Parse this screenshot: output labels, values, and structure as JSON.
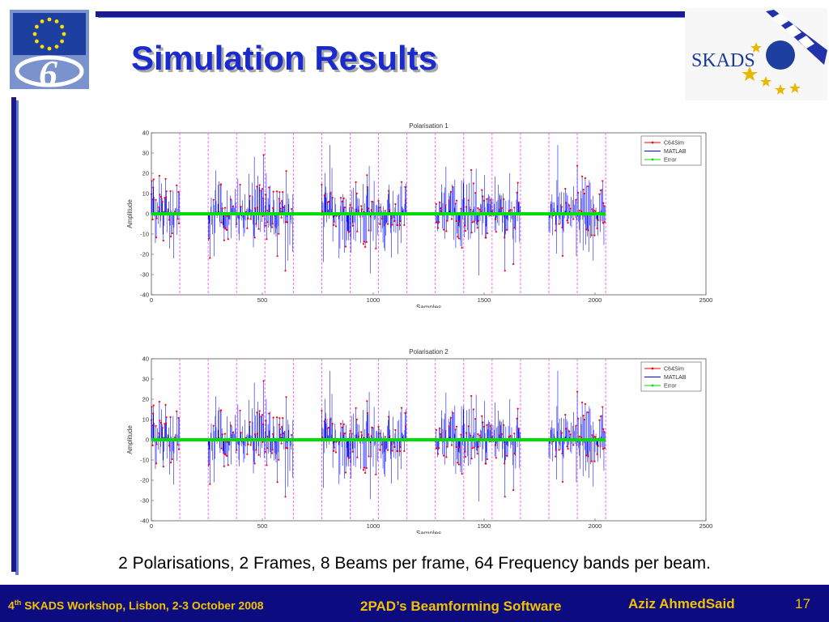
{
  "slide": {
    "title": "Simulation Results",
    "caption": "2 Polarisations, 2 Frames, 8 Beams per frame, 64 Frequency bands per beam."
  },
  "footer": {
    "event_num": "4",
    "event_sup": "th",
    "event_rest": " SKADS Workshop, Lisbon, 2-3 October 2008",
    "talk": "2PAD’s Beamforming Software",
    "author": "Aziz AhmedSaid",
    "page": "17"
  },
  "logos": {
    "eu": {
      "name": "eu-fp6-logo",
      "number": "6"
    },
    "skads": {
      "name": "skads-logo",
      "text": "SKADS"
    }
  },
  "colors": {
    "accent_blue": "#1a1a8c",
    "title_blue": "#1a2acc",
    "footer_text": "#f2c200",
    "c64sim": "#ff0000",
    "matlab": "#0000ff",
    "error": "#00dd00",
    "boundary": "#ff55ff"
  },
  "chart_data": [
    {
      "type": "line",
      "title": "Polarisation 1",
      "xlabel": "Samples",
      "ylabel": "Amplitude",
      "xlim": [
        0,
        2500
      ],
      "ylim": [
        -40,
        40
      ],
      "xticks": [
        0,
        500,
        1000,
        1500,
        2000,
        2500
      ],
      "yticks": [
        40,
        30,
        20,
        10,
        0,
        -10,
        -20,
        -30,
        -40
      ],
      "grid": false,
      "legend_position": "top-right",
      "series": [
        {
          "name": "C64Sim",
          "color": "#ff0000",
          "marker": "dot"
        },
        {
          "name": "MATLAB",
          "color": "#0000ff",
          "marker": "none"
        },
        {
          "name": "Error",
          "color": "#00dd00",
          "marker": "dot"
        }
      ],
      "signal_range": [
        0,
        2048
      ],
      "active_segments": [
        [
          0,
          128
        ],
        [
          256,
          640
        ],
        [
          768,
          1152
        ],
        [
          1280,
          1664
        ],
        [
          1792,
          2048
        ]
      ],
      "peak_amplitude": 32,
      "error_level": 0,
      "vlines": [
        128,
        256,
        384,
        512,
        640,
        768,
        896,
        1024,
        1152,
        1280,
        1408,
        1536,
        1664,
        1792,
        1920,
        2048
      ],
      "vline_color": "#ff55ff"
    },
    {
      "type": "line",
      "title": "Polarisation 2",
      "xlabel": "Samples",
      "ylabel": "Amplitude",
      "xlim": [
        0,
        2500
      ],
      "ylim": [
        -40,
        40
      ],
      "xticks": [
        0,
        500,
        1000,
        1500,
        2000,
        2500
      ],
      "yticks": [
        40,
        30,
        20,
        10,
        0,
        -10,
        -20,
        -30,
        -40
      ],
      "grid": false,
      "legend_position": "top-right",
      "series": [
        {
          "name": "C64Sim",
          "color": "#ff0000",
          "marker": "dot"
        },
        {
          "name": "MATLAB",
          "color": "#0000ff",
          "marker": "none"
        },
        {
          "name": "Error",
          "color": "#00dd00",
          "marker": "dot"
        }
      ],
      "signal_range": [
        0,
        2048
      ],
      "active_segments": [
        [
          0,
          128
        ],
        [
          256,
          640
        ],
        [
          768,
          1152
        ],
        [
          1280,
          1664
        ],
        [
          1792,
          2048
        ]
      ],
      "peak_amplitude": 32,
      "error_level": 0,
      "vlines": [
        128,
        256,
        384,
        512,
        640,
        768,
        896,
        1024,
        1152,
        1280,
        1408,
        1536,
        1664,
        1792,
        1920,
        2048
      ],
      "vline_color": "#ff55ff"
    }
  ]
}
